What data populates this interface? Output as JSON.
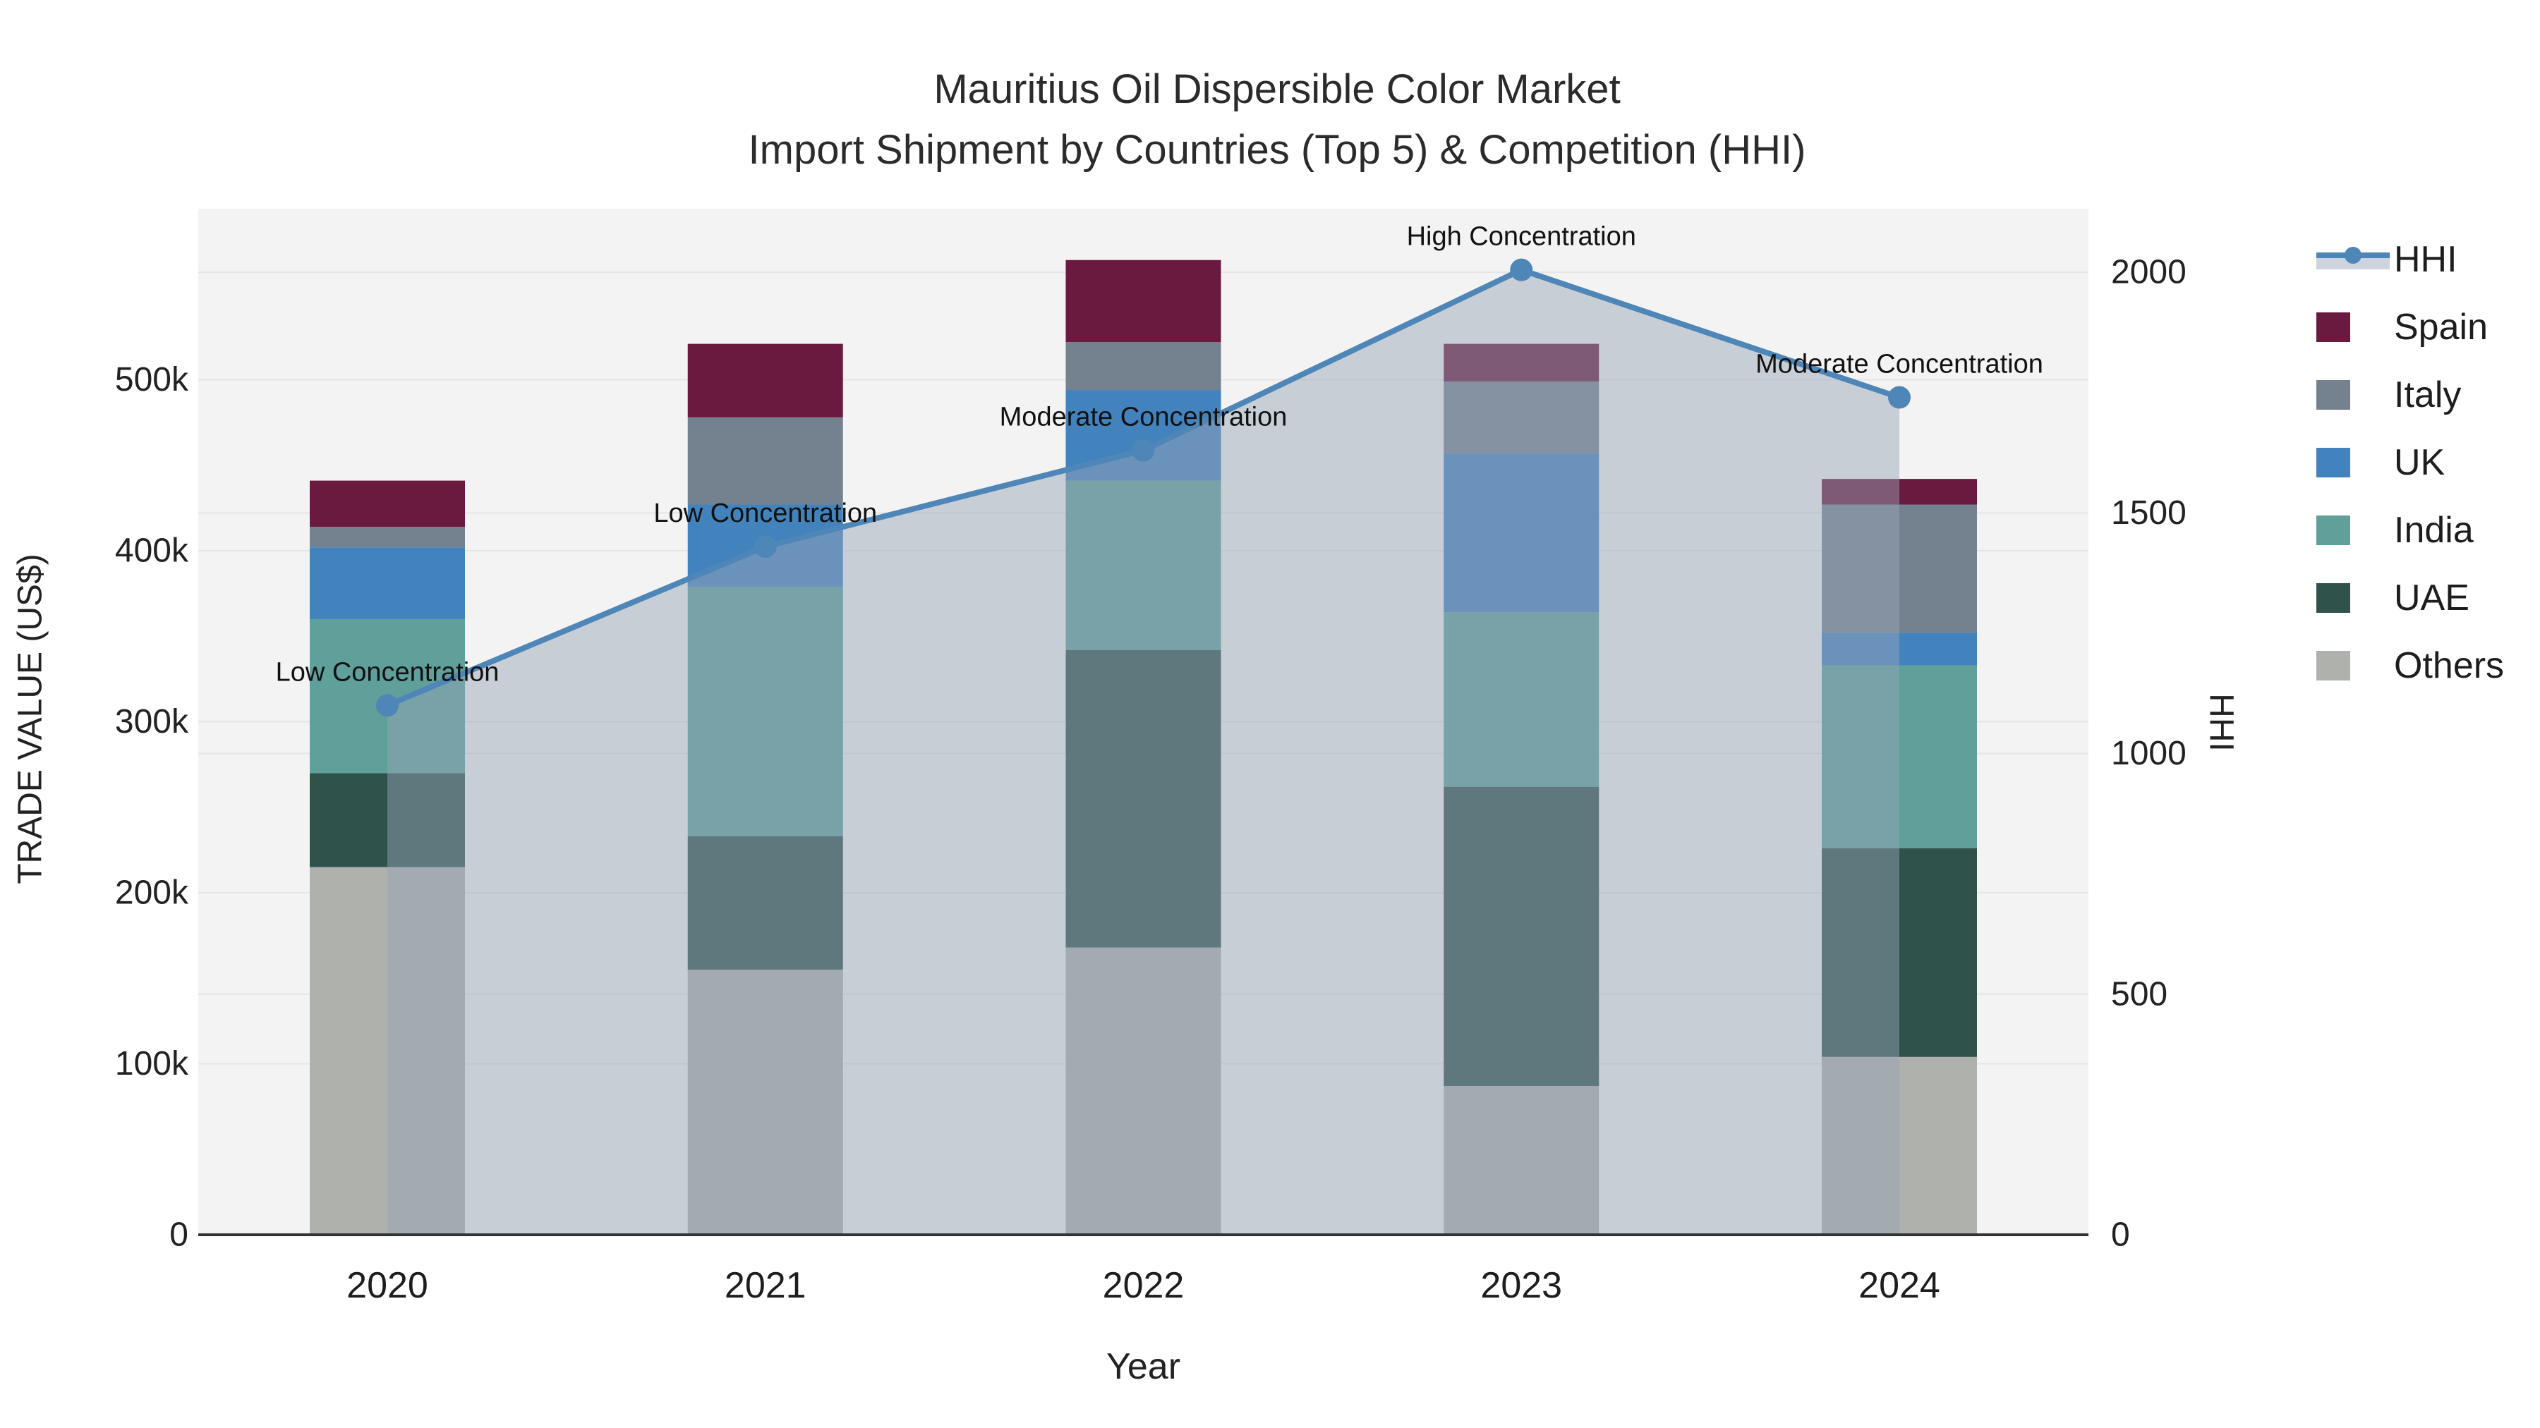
{
  "title": {
    "line1": "Mauritius Oil Dispersible Color Market",
    "line2": "Import Shipment by Countries (Top 5) & Competition (HHI)"
  },
  "axes": {
    "x": {
      "title": "Year"
    },
    "y_left": {
      "title": "TRADE VALUE (US$)",
      "tick_labels": [
        "0",
        "100k",
        "200k",
        "300k",
        "400k",
        "500k"
      ],
      "tick_values": [
        0,
        100000,
        200000,
        300000,
        400000,
        500000
      ],
      "range": [
        0,
        600000
      ]
    },
    "y_right": {
      "title": "HHI",
      "tick_labels": [
        "0",
        "500",
        "1000",
        "1500",
        "2000"
      ],
      "tick_values": [
        0,
        500,
        1000,
        1500,
        2000
      ],
      "range": [
        0,
        2132
      ]
    }
  },
  "legend": {
    "items": [
      {
        "label": "HHI",
        "type": "line",
        "color": "#4E86B8"
      },
      {
        "label": "Spain",
        "type": "bar",
        "color": "#6A1A3E"
      },
      {
        "label": "Italy",
        "type": "bar",
        "color": "#74828F"
      },
      {
        "label": "UK",
        "type": "bar",
        "color": "#4282BD"
      },
      {
        "label": "India",
        "type": "bar",
        "color": "#5FA09B"
      },
      {
        "label": "UAE",
        "type": "bar",
        "color": "#2F524B"
      },
      {
        "label": "Others",
        "type": "bar",
        "color": "#AFB1AC"
      }
    ]
  },
  "chart_data": {
    "type": "bar",
    "subtype": "stacked-bar-with-line-overlay",
    "categories": [
      "2020",
      "2021",
      "2022",
      "2023",
      "2024"
    ],
    "value_unit": "US$",
    "series": [
      {
        "name": "Others",
        "color": "#AFB1AC",
        "values": [
          215000,
          155000,
          168000,
          87000,
          104000
        ]
      },
      {
        "name": "UAE",
        "color": "#2F524B",
        "values": [
          55000,
          78000,
          174000,
          175000,
          122000
        ]
      },
      {
        "name": "India",
        "color": "#5FA09B",
        "values": [
          90000,
          146000,
          99000,
          102000,
          107000
        ]
      },
      {
        "name": "UK",
        "color": "#4282BD",
        "values": [
          42000,
          48000,
          53000,
          93000,
          19000
        ]
      },
      {
        "name": "Italy",
        "color": "#74828F",
        "values": [
          12000,
          51000,
          28000,
          42000,
          75000
        ]
      },
      {
        "name": "Spain",
        "color": "#6A1A3E",
        "values": [
          27000,
          43000,
          48000,
          22000,
          15000
        ]
      }
    ],
    "line_series": {
      "name": "HHI",
      "axis": "right",
      "color": "#4E86B8",
      "area_fill": "rgba(150,164,183,0.47)",
      "values": [
        1100,
        1430,
        1630,
        2005,
        1740
      ]
    },
    "annotations": [
      {
        "category": "2020",
        "text": "Low Concentration"
      },
      {
        "category": "2021",
        "text": "Low Concentration"
      },
      {
        "category": "2022",
        "text": "Moderate Concentration"
      },
      {
        "category": "2023",
        "text": "High Concentration"
      },
      {
        "category": "2024",
        "text": "Moderate Concentration"
      }
    ],
    "layout_hints": {
      "plot_bg": "#F2F3F2",
      "grid_color": "#E5E5E5",
      "axis_line_color": "#333333",
      "grid": "on",
      "legend_position": "right",
      "bar_totals": [
        441000,
        521000,
        570000,
        521000,
        442000
      ]
    }
  }
}
